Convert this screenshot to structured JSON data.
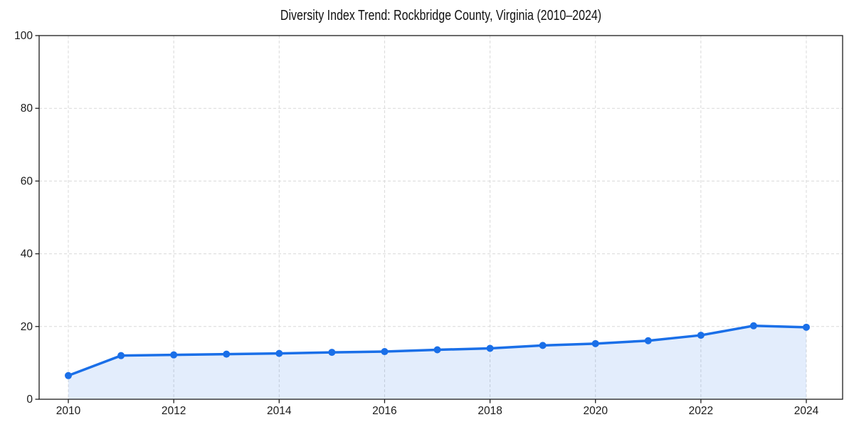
{
  "figure": {
    "background": "#ffffff"
  },
  "chart_data": {
    "type": "area",
    "title": "Diversity Index Trend: Rockbridge County, Virginia (2010–2024)",
    "xlabel": "",
    "ylabel": "",
    "x": [
      2010,
      2011,
      2012,
      2013,
      2014,
      2015,
      2016,
      2017,
      2018,
      2019,
      2020,
      2021,
      2022,
      2023,
      2024
    ],
    "series": [
      {
        "name": "Diversity Index",
        "values": [
          6.5,
          12.0,
          12.2,
          12.4,
          12.6,
          12.9,
          13.1,
          13.6,
          14.0,
          14.8,
          15.3,
          16.1,
          17.6,
          20.2,
          19.8
        ]
      }
    ],
    "ylim": [
      0,
      100
    ],
    "yticks": [
      0,
      20,
      40,
      60,
      80,
      100
    ],
    "xticks": [
      2010,
      2012,
      2014,
      2016,
      2018,
      2020,
      2022,
      2024
    ],
    "grid": true,
    "grid_style": "dashed",
    "legend_position": "none",
    "marker": "circle",
    "colors": {
      "line": "#1a6fe8",
      "marker": "#1a6fe8",
      "fill": "rgba(26,111,232,0.12)",
      "grid": "#d9d9d9",
      "axis": "#1c1c1c",
      "tick_label": "#1a1a1a",
      "title": "#111111"
    }
  }
}
